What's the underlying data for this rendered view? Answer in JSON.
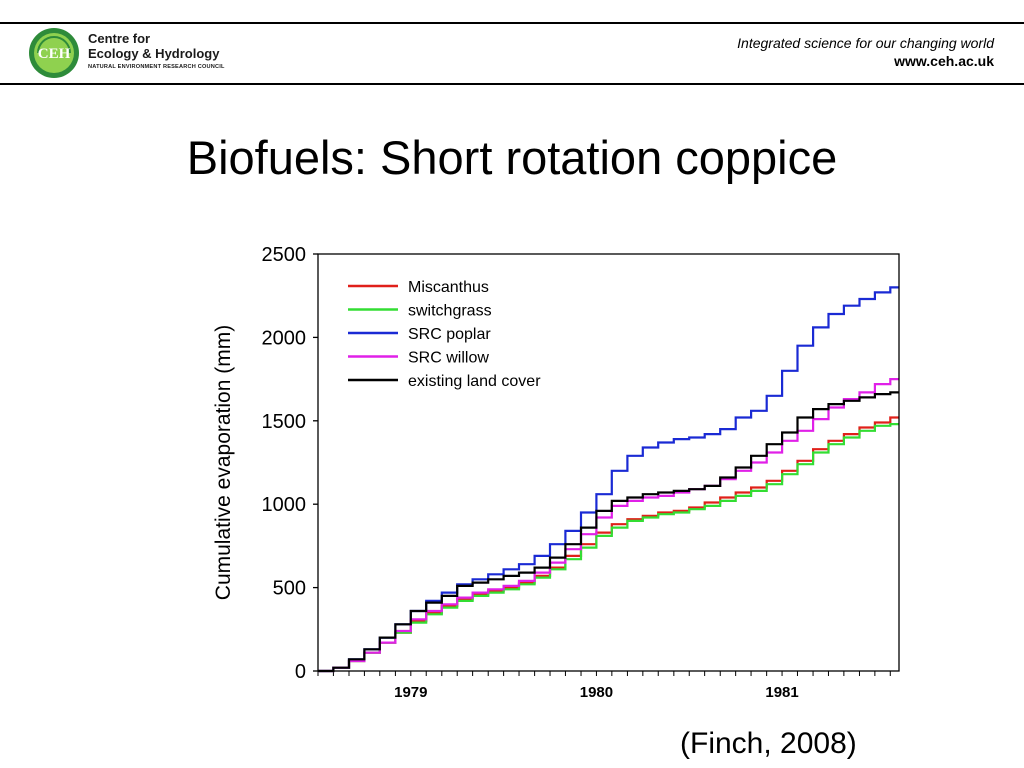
{
  "header": {
    "logo": {
      "badge_text": "CEH",
      "line1": "Centre for",
      "line2": "Ecology & Hydrology",
      "line3": "NATURAL ENVIRONMENT RESEARCH COUNCIL",
      "colors": {
        "ring": "#2e8b3a",
        "fill": "#8fd14f",
        "text": "#ffffff"
      }
    },
    "tagline": "Integrated science for our changing world",
    "url": "www.ceh.ac.uk"
  },
  "slide": {
    "title": "Biofuels: Short rotation coppice",
    "citation": "(Finch, 2008)"
  },
  "chart_data": {
    "type": "line",
    "title": "",
    "xlabel": "",
    "ylabel": "Cumulative evaporation (mm)",
    "xlim": [
      1978.5,
      1981.63
    ],
    "ylim": [
      0,
      2500
    ],
    "yticks": [
      0,
      500,
      1000,
      1500,
      2000,
      2500
    ],
    "xtick_labels": [
      {
        "label": "1979",
        "x": 1979.0
      },
      {
        "label": "1980",
        "x": 1980.0
      },
      {
        "label": "1981",
        "x": 1981.0
      }
    ],
    "step": true,
    "grid": false,
    "legend_position": "top-left",
    "x": [
      1978.5,
      1978.583,
      1978.667,
      1978.75,
      1978.833,
      1978.917,
      1979.0,
      1979.083,
      1979.167,
      1979.25,
      1979.333,
      1979.417,
      1979.5,
      1979.583,
      1979.667,
      1979.75,
      1979.833,
      1979.917,
      1980.0,
      1980.083,
      1980.167,
      1980.25,
      1980.333,
      1980.417,
      1980.5,
      1980.583,
      1980.667,
      1980.75,
      1980.833,
      1980.917,
      1981.0,
      1981.083,
      1981.167,
      1981.25,
      1981.333,
      1981.417,
      1981.5,
      1981.583
    ],
    "series": [
      {
        "name": "Miscanthus",
        "color": "#e0201a",
        "values": [
          0,
          20,
          60,
          110,
          170,
          230,
          300,
          350,
          390,
          430,
          460,
          480,
          500,
          530,
          570,
          620,
          690,
          760,
          830,
          880,
          910,
          930,
          950,
          960,
          980,
          1010,
          1040,
          1070,
          1100,
          1140,
          1200,
          1260,
          1330,
          1380,
          1420,
          1460,
          1490,
          1520
        ]
      },
      {
        "name": "switchgrass",
        "color": "#33dd33",
        "values": [
          0,
          20,
          60,
          110,
          170,
          230,
          290,
          340,
          380,
          420,
          450,
          470,
          490,
          520,
          560,
          610,
          670,
          740,
          810,
          860,
          900,
          920,
          940,
          950,
          970,
          990,
          1020,
          1050,
          1080,
          1120,
          1180,
          1240,
          1310,
          1360,
          1400,
          1440,
          1470,
          1480
        ]
      },
      {
        "name": "SRC poplar",
        "color": "#1a2ad4",
        "values": [
          0,
          20,
          70,
          130,
          200,
          280,
          360,
          420,
          470,
          520,
          550,
          580,
          610,
          640,
          690,
          760,
          840,
          950,
          1060,
          1200,
          1290,
          1340,
          1370,
          1390,
          1400,
          1420,
          1450,
          1520,
          1560,
          1650,
          1800,
          1950,
          2060,
          2140,
          2190,
          2230,
          2270,
          2300
        ]
      },
      {
        "name": "SRC willow",
        "color": "#e020e8",
        "values": [
          0,
          20,
          60,
          110,
          170,
          240,
          310,
          360,
          400,
          440,
          470,
          490,
          510,
          540,
          590,
          650,
          730,
          820,
          920,
          990,
          1020,
          1040,
          1050,
          1070,
          1090,
          1110,
          1150,
          1200,
          1250,
          1310,
          1380,
          1440,
          1510,
          1580,
          1630,
          1670,
          1720,
          1750
        ]
      },
      {
        "name": "existing land cover",
        "color": "#000000",
        "values": [
          0,
          20,
          70,
          130,
          200,
          280,
          360,
          410,
          450,
          510,
          530,
          550,
          570,
          590,
          620,
          680,
          760,
          860,
          960,
          1020,
          1040,
          1060,
          1070,
          1080,
          1090,
          1110,
          1160,
          1220,
          1290,
          1360,
          1430,
          1520,
          1570,
          1600,
          1620,
          1640,
          1660,
          1670
        ]
      }
    ]
  }
}
